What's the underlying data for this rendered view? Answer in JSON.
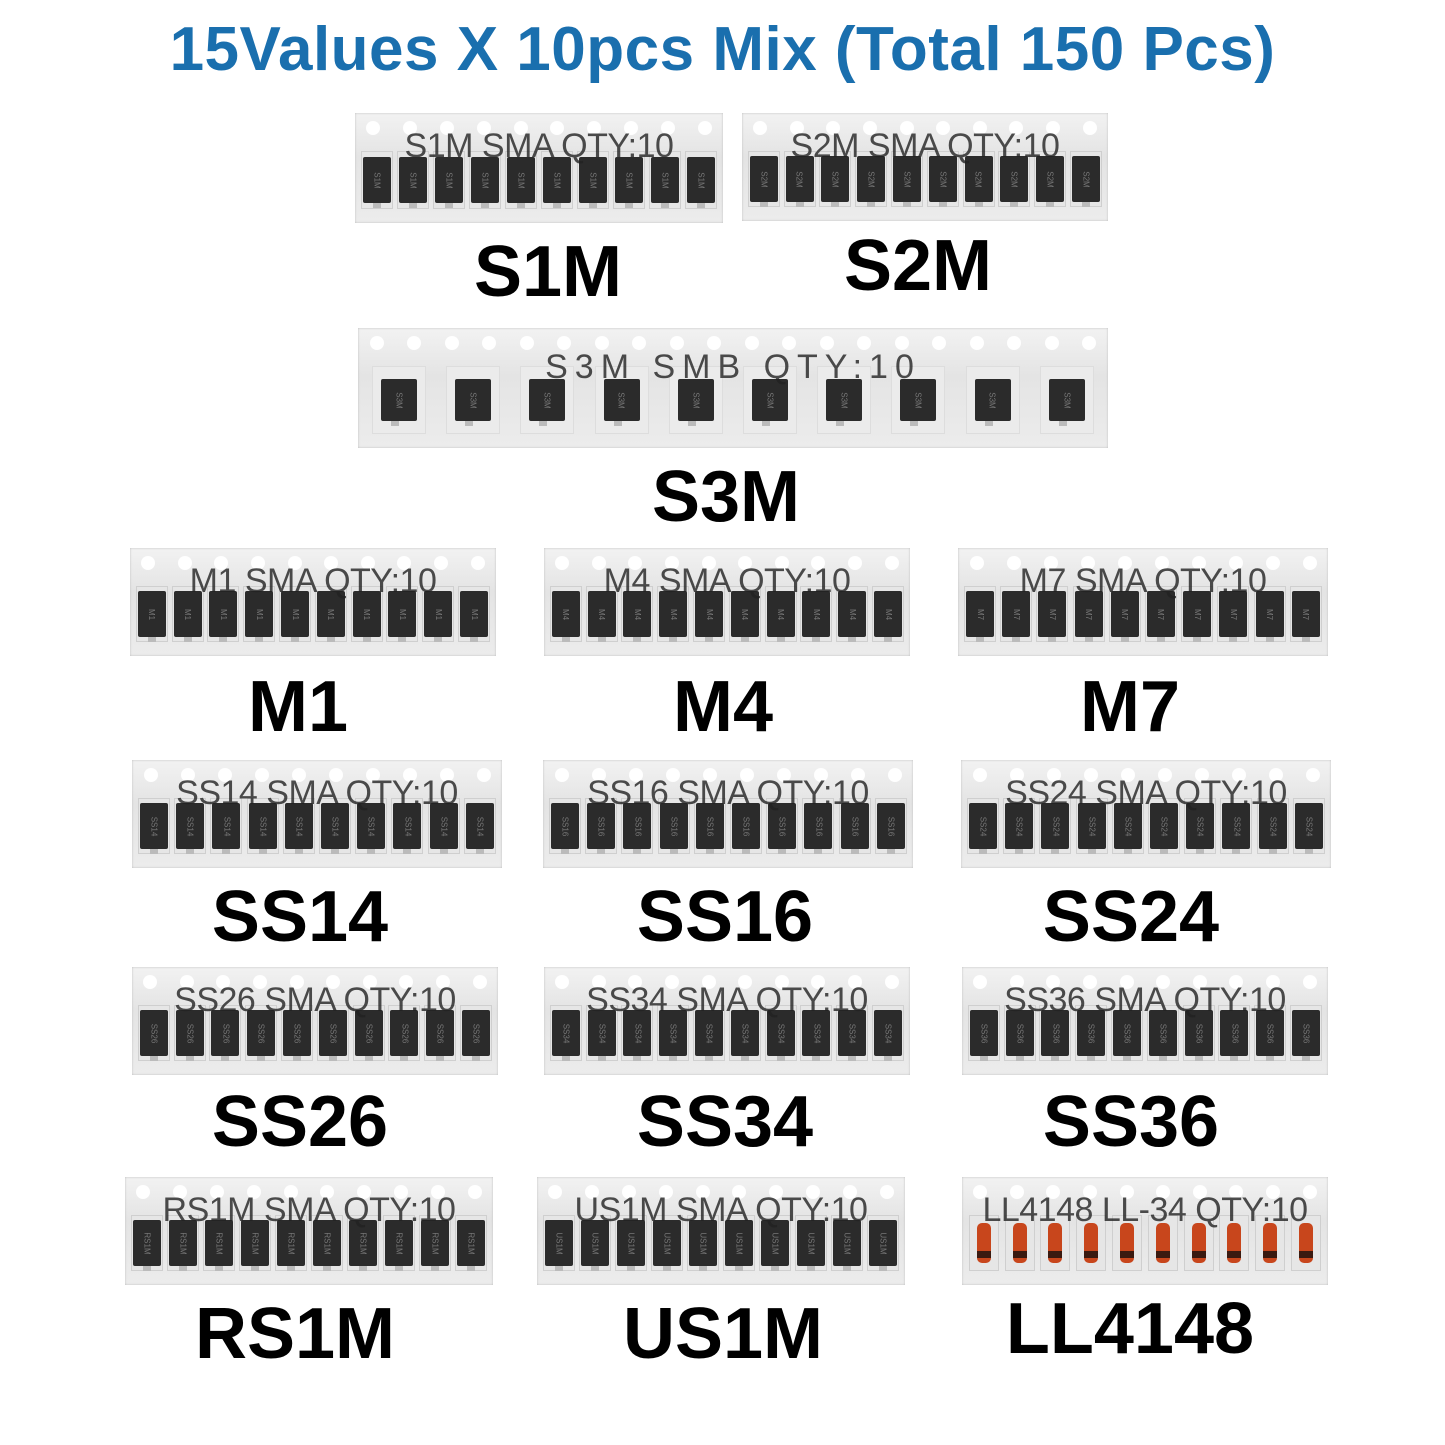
{
  "title": "15Values X 10pcs Mix (Total 150 Pcs)",
  "items": [
    {
      "label": "S1M",
      "strip_text": "S1M SMA QTY:10",
      "marking": "S1M",
      "package": "SMA"
    },
    {
      "label": "S2M",
      "strip_text": "S2M SMA QTY:10",
      "marking": "S2M",
      "package": "SMA"
    },
    {
      "label": "S3M",
      "strip_text": "S3M SMB QTY:10",
      "marking": "S3M",
      "package": "SMB"
    },
    {
      "label": "M1",
      "strip_text": "M1 SMA QTY:10",
      "marking": "M1",
      "package": "SMA"
    },
    {
      "label": "M4",
      "strip_text": "M4 SMA QTY:10",
      "marking": "M4",
      "package": "SMA"
    },
    {
      "label": "M7",
      "strip_text": "M7 SMA QTY:10",
      "marking": "M7",
      "package": "SMA"
    },
    {
      "label": "SS14",
      "strip_text": "SS14 SMA QTY:10",
      "marking": "SS14",
      "package": "SMA"
    },
    {
      "label": "SS16",
      "strip_text": "SS16 SMA QTY:10",
      "marking": "SS16",
      "package": "SMA"
    },
    {
      "label": "SS24",
      "strip_text": "SS24 SMA QTY:10",
      "marking": "SS24",
      "package": "SMA"
    },
    {
      "label": "SS26",
      "strip_text": "SS26 SMA QTY:10",
      "marking": "SS26",
      "package": "SMA"
    },
    {
      "label": "SS34",
      "strip_text": "SS34 SMA QTY:10",
      "marking": "SS34",
      "package": "SMA"
    },
    {
      "label": "SS36",
      "strip_text": "SS36 SMA QTY:10",
      "marking": "SS36",
      "package": "SMA"
    },
    {
      "label": "RS1M",
      "strip_text": "RS1M SMA QTY:10",
      "marking": "RS1M",
      "package": "SMA"
    },
    {
      "label": "US1M",
      "strip_text": "US1M SMA QTY:10",
      "marking": "US1M",
      "package": "SMA"
    },
    {
      "label": "LL4148",
      "strip_text": "LL4148 LL-34 QTY:10",
      "marking": "",
      "package": "LL-34"
    }
  ],
  "colors": {
    "title": "#1a6fae",
    "label": "#000000",
    "ll34_body": "#c8461c"
  }
}
